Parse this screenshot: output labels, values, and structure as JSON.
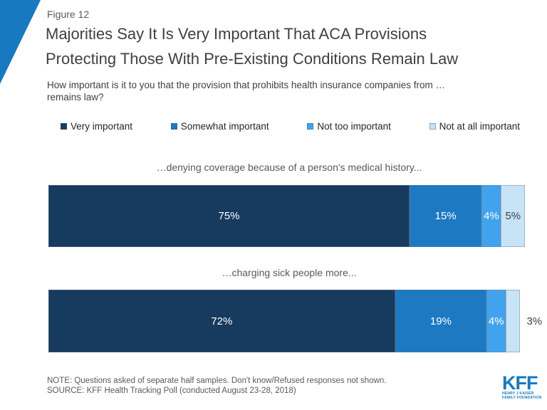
{
  "colors": {
    "accent_blue": "#1779bf",
    "very_important": "#173a5f",
    "somewhat_important": "#1d79c2",
    "not_too_important": "#41a3ee",
    "not_at_all_important": "#c7e3f8",
    "title_text": "#404040",
    "note_text": "#595959"
  },
  "header": {
    "figure_label": "Figure 12",
    "title": "Majorities Say It Is Very Important That ACA Provisions\nProtecting Those With Pre-Existing Conditions Remain Law",
    "question": "How important is it to you that the provision that prohibits health insurance companies from …\nremains law?"
  },
  "legend": [
    {
      "label": "Very important",
      "color": "#173a5f"
    },
    {
      "label": "Somewhat important",
      "color": "#1d79c2"
    },
    {
      "label": "Not too important",
      "color": "#41a3ee"
    },
    {
      "label": "Not at all important",
      "color": "#c7e3f8"
    }
  ],
  "chart_data": {
    "type": "bar",
    "orientation": "horizontal-stacked",
    "categories": [
      "…denying coverage because of a person's medical history...",
      "…charging sick people more..."
    ],
    "series": [
      {
        "name": "Very important",
        "values": [
          75,
          72
        ]
      },
      {
        "name": "Somewhat important",
        "values": [
          15,
          19
        ]
      },
      {
        "name": "Not too important",
        "values": [
          4,
          4
        ]
      },
      {
        "name": "Not at all important",
        "values": [
          5,
          3
        ]
      }
    ],
    "xlim": [
      0,
      100
    ],
    "value_suffix": "%",
    "grid": false,
    "legend_position": "top"
  },
  "footer": {
    "note": "NOTE: Questions asked of separate half samples. Don't know/Refused responses not shown.",
    "source": "SOURCE: KFF Health Tracking Poll (conducted August 23-28, 2018)",
    "logo": {
      "text": "KFF",
      "tagline_line1": "HENRY J KAISER",
      "tagline_line2": "FAMILY FOUNDATION"
    }
  }
}
